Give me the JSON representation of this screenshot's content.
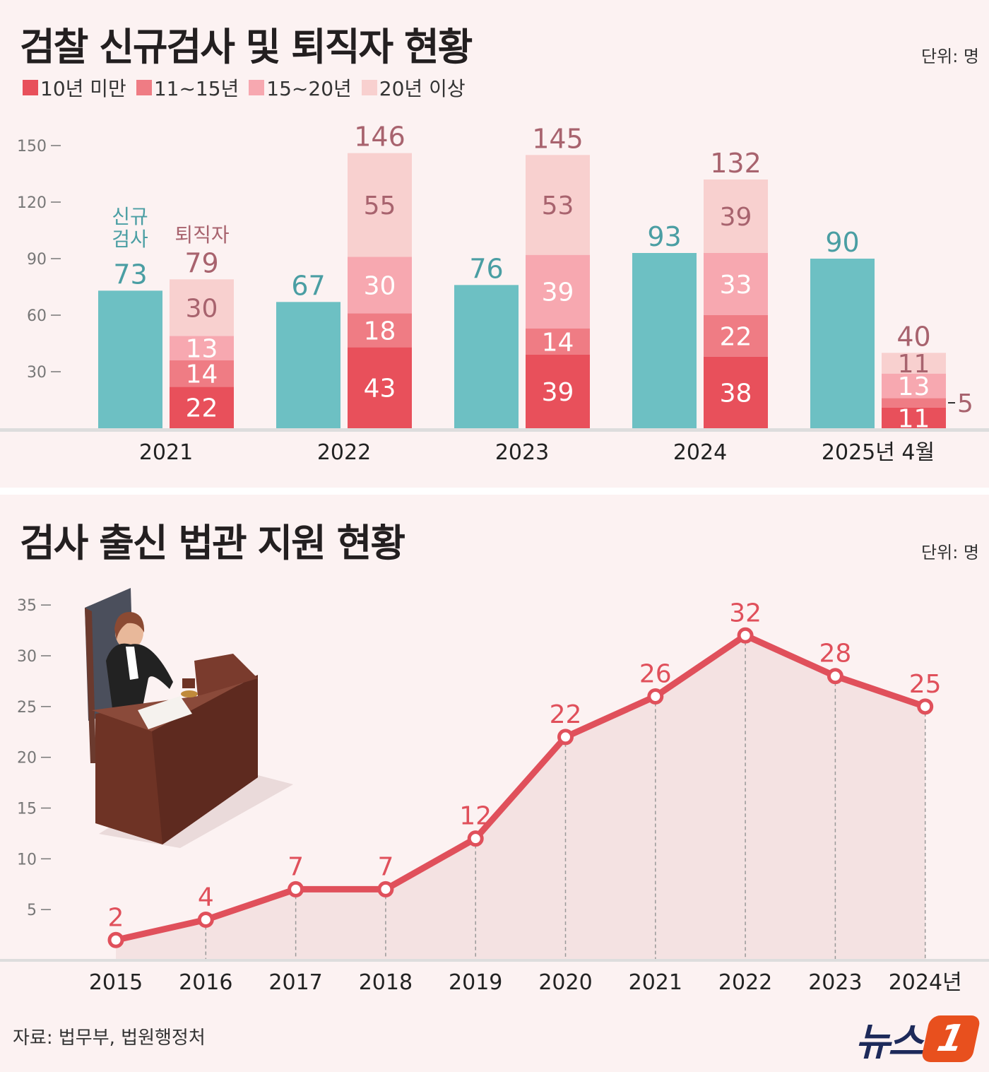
{
  "colors": {
    "background": "#fcf2f2",
    "teal": "#6dc0c3",
    "teal_text": "#4a9ea3",
    "total_text": "#a8636e",
    "seg": [
      "#e8505b",
      "#ef7c84",
      "#f7a8b0",
      "#f8d0cf"
    ],
    "line": "#e0505b"
  },
  "top": {
    "title": "검찰 신규검사 및 퇴직자 현황",
    "unit": "단위: 명"
  },
  "bottom": {
    "title": "검사 출신 법관 지원 현황",
    "unit": "단위: 명"
  },
  "source": "자료: 법무부, 법원행정처",
  "logo": {
    "text": "뉴스",
    "number": "1"
  },
  "chart_data": [
    {
      "type": "bar",
      "title": "검찰 신규검사 및 퇴직자 현황",
      "categories": [
        "2021",
        "2022",
        "2023",
        "2024",
        "2025년 4월"
      ],
      "ylim": [
        0,
        150
      ],
      "yticks": [
        30,
        60,
        90,
        120,
        150
      ],
      "annotations": {
        "new_label": "신규\n검사",
        "retire_label": "퇴직자"
      },
      "new_prosecutors": {
        "name": "신규검사",
        "values": [
          73,
          67,
          76,
          93,
          90
        ]
      },
      "retirees": {
        "name": "퇴직자",
        "totals": [
          79,
          146,
          145,
          132,
          40
        ],
        "series": [
          {
            "name": "10년 미만",
            "values": [
              22,
              43,
              39,
              38,
              11
            ]
          },
          {
            "name": "11~15년",
            "values": [
              14,
              18,
              14,
              22,
              5
            ]
          },
          {
            "name": "15~20년",
            "values": [
              13,
              30,
              39,
              33,
              13
            ]
          },
          {
            "name": "20년 이상",
            "values": [
              30,
              55,
              53,
              39,
              11
            ]
          }
        ]
      },
      "legend": [
        "10년 미만",
        "11~15년",
        "15~20년",
        "20년 이상"
      ],
      "legend_position": "top-left"
    },
    {
      "type": "line",
      "title": "검사 출신 법관 지원 현황",
      "x": [
        "2015",
        "2016",
        "2017",
        "2018",
        "2019",
        "2020",
        "2021",
        "2022",
        "2023",
        "2024년"
      ],
      "values": [
        2,
        4,
        7,
        7,
        12,
        22,
        26,
        32,
        28,
        25
      ],
      "ylim": [
        0,
        35
      ],
      "yticks": [
        5,
        10,
        15,
        20,
        25,
        30,
        35
      ]
    }
  ]
}
